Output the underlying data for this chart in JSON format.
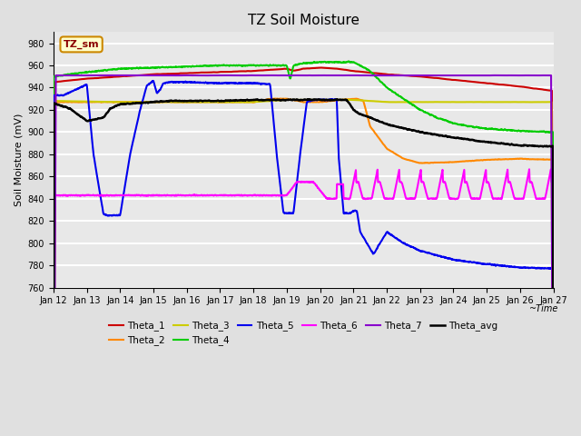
{
  "title": "TZ Soil Moisture",
  "ylabel": "Soil Moisture (mV)",
  "ylim": [
    760,
    990
  ],
  "yticks": [
    760,
    780,
    800,
    820,
    840,
    860,
    880,
    900,
    920,
    940,
    960,
    980
  ],
  "bg_color": "#e0e0e0",
  "plot_bg_color": "#e8e8e8",
  "grid_color": "white",
  "legend_label": "TZ_sm",
  "series": {
    "Theta_1": {
      "color": "#cc0000",
      "lw": 1.5
    },
    "Theta_2": {
      "color": "#ff8800",
      "lw": 1.5
    },
    "Theta_3": {
      "color": "#cccc00",
      "lw": 1.5
    },
    "Theta_4": {
      "color": "#00cc00",
      "lw": 1.5
    },
    "Theta_5": {
      "color": "#0000ee",
      "lw": 1.5
    },
    "Theta_6": {
      "color": "#ff00ff",
      "lw": 1.5
    },
    "Theta_7": {
      "color": "#8800cc",
      "lw": 1.5
    },
    "Theta_avg": {
      "color": "#000000",
      "lw": 1.8
    }
  },
  "xtick_labels": [
    "Jan 12",
    "Jan 13",
    "Jan 14",
    "Jan 15",
    "Jan 16",
    "Jan 17",
    "Jan 18",
    "Jan 19",
    "Jan 20",
    "Jan 21",
    "Jan 22",
    "Jan 23",
    "Jan 24",
    "Jan 25",
    "Jan 26",
    "Jan 27"
  ]
}
